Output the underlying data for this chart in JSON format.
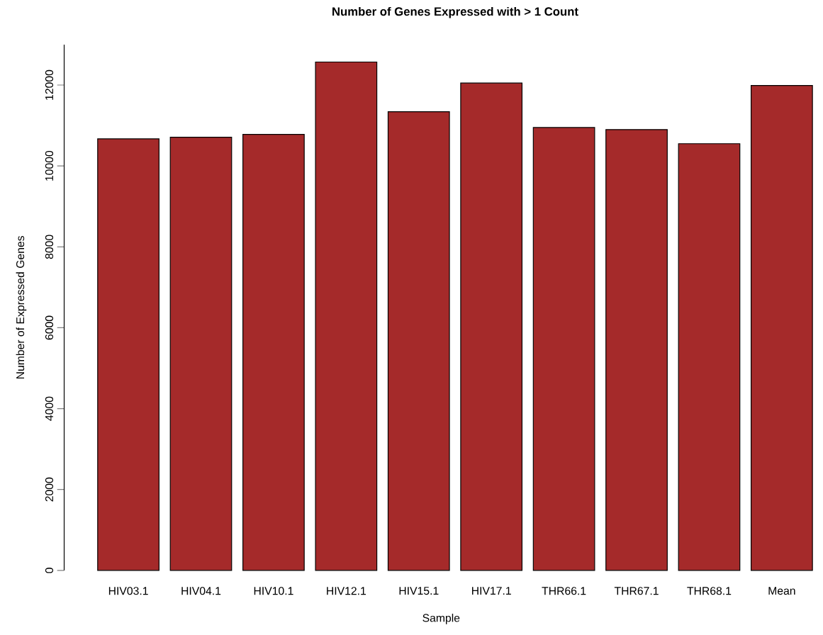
{
  "chart_data": {
    "type": "bar",
    "title": "Number of Genes Expressed with > 1 Count",
    "xlabel": "Sample",
    "ylabel": "Number of Expressed Genes",
    "categories": [
      "HIV03.1",
      "HIV04.1",
      "HIV10.1",
      "HIV12.1",
      "HIV15.1",
      "HIV17.1",
      "THR66.1",
      "THR67.1",
      "THR68.1",
      "Mean"
    ],
    "values": [
      10670,
      10710,
      10780,
      12570,
      11340,
      12050,
      10950,
      10900,
      10550,
      11990
    ],
    "color": "#a52a2a",
    "ylim": [
      0,
      13000
    ],
    "yticks": [
      0,
      2000,
      4000,
      6000,
      8000,
      10000,
      12000
    ],
    "grid": false
  }
}
